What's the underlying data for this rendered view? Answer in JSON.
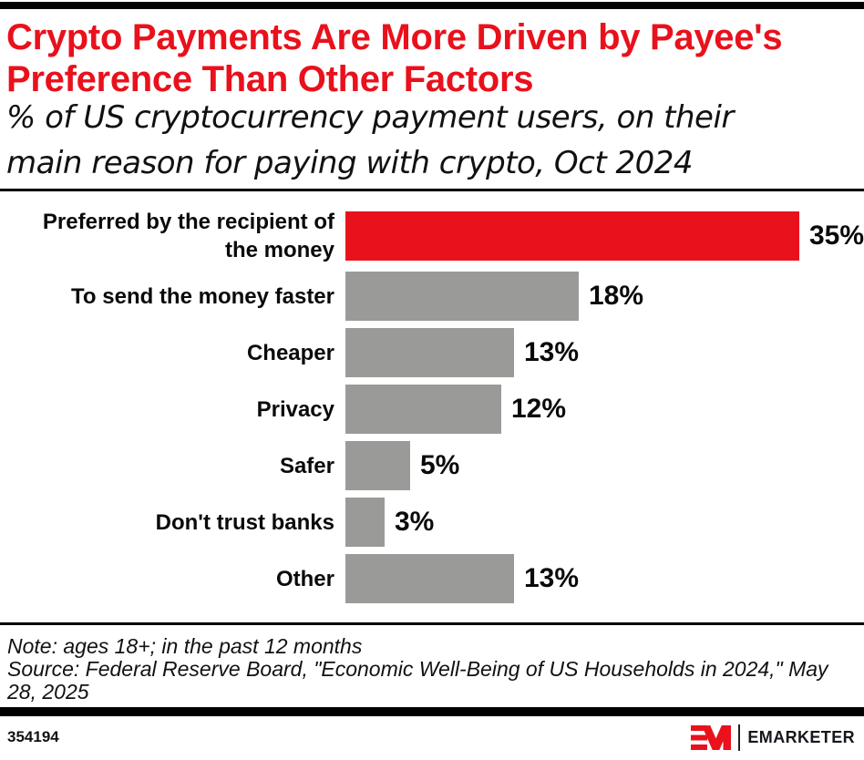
{
  "header": {
    "title_lines": [
      "Crypto Payments Are More Driven by Payee's",
      "Preference Than Other Factors"
    ],
    "subtitle_lines": [
      "% of US cryptocurrency payment users, on their",
      "main reason for paying with crypto, Oct 2024"
    ]
  },
  "chart_data": {
    "type": "bar",
    "orientation": "horizontal",
    "title": "Crypto Payments Are More Driven by Payee's Preference Than Other Factors",
    "subtitle": "% of US cryptocurrency payment users, on their main reason for paying with crypto, Oct 2024",
    "categories": [
      "Preferred by the recipient of the money",
      "To send the money faster",
      "Cheaper",
      "Privacy",
      "Safer",
      "Don't trust banks",
      "Other"
    ],
    "values": [
      35,
      18,
      13,
      12,
      5,
      3,
      13
    ],
    "value_labels": [
      "35%",
      "18%",
      "13%",
      "12%",
      "5%",
      "3%",
      "13%"
    ],
    "xlim": [
      0,
      35
    ],
    "highlight_index": 0,
    "highlight_color": "#E8111C",
    "bar_color": "#9A9A98",
    "legend": "none",
    "grid": "off"
  },
  "notes": {
    "note": "Note: ages 18+; in the past 12 months",
    "source": "Source: Federal Reserve Board, \"Economic Well-Being of US Households in 2024,\" May 28, 2025"
  },
  "footer": {
    "chart_id": "354194",
    "brand": "EMARKETER"
  },
  "colors": {
    "red": "#E8111C",
    "gray": "#9A9A98",
    "rule_black": "#000000"
  }
}
